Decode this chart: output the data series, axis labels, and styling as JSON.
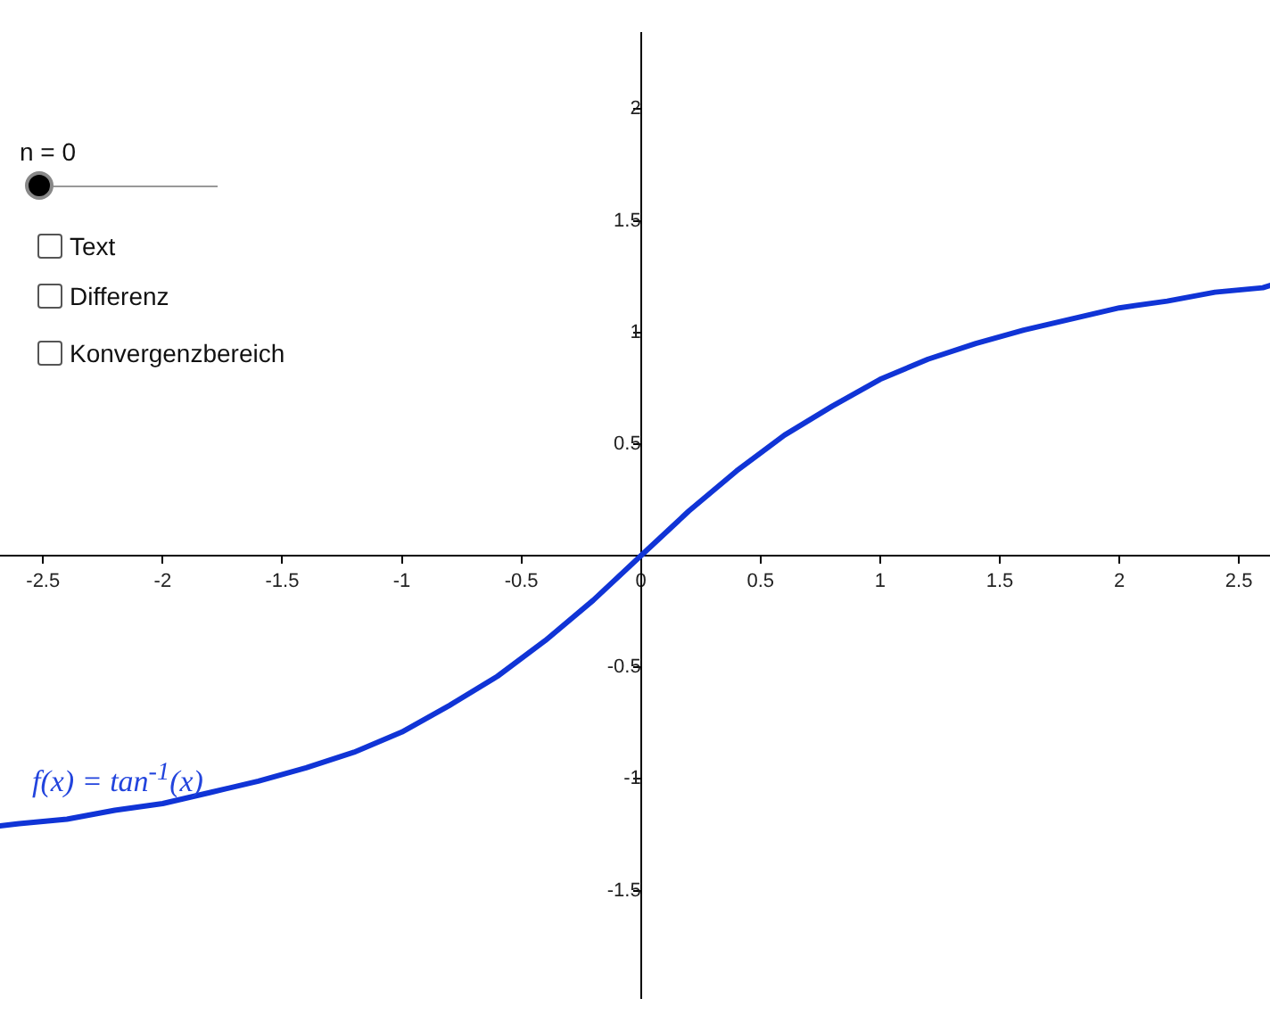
{
  "chart_data": {
    "type": "line",
    "x": [
      -2.68,
      -2.6,
      -2.4,
      -2.2,
      -2.0,
      -1.8,
      -1.6,
      -1.4,
      -1.2,
      -1.0,
      -0.8,
      -0.6,
      -0.4,
      -0.2,
      0,
      0.2,
      0.4,
      0.6,
      0.8,
      1.0,
      1.2,
      1.4,
      1.6,
      1.8,
      2.0,
      2.2,
      2.4,
      2.6,
      2.63
    ],
    "series": [
      {
        "color": "#1034d6",
        "values": [
          -1.21,
          -1.2,
          -1.18,
          -1.14,
          -1.11,
          -1.06,
          -1.01,
          -0.95,
          -0.88,
          -0.79,
          -0.67,
          -0.54,
          -0.38,
          -0.2,
          0,
          0.2,
          0.38,
          0.54,
          0.67,
          0.79,
          0.88,
          0.95,
          1.01,
          1.06,
          1.11,
          1.14,
          1.18,
          1.2,
          1.21
        ]
      }
    ],
    "xlim": [
      -2.68,
      2.63
    ],
    "ylim": [
      -1.98,
      2.34
    ],
    "xticks": [
      -2.5,
      -2,
      -1.5,
      -1,
      -0.5,
      0,
      0.5,
      1,
      1.5,
      2,
      2.5
    ],
    "yticks": [
      -1.5,
      -1,
      -0.5,
      0.5,
      1,
      1.5,
      2
    ],
    "grid": false,
    "legend": false,
    "marker": "none",
    "line_style": "solid",
    "annotations": [
      "n = 0",
      "Text",
      "Differenz",
      "Konvergenzbereich",
      "f(x) = tan$^{-1}$(x)"
    ]
  }
}
